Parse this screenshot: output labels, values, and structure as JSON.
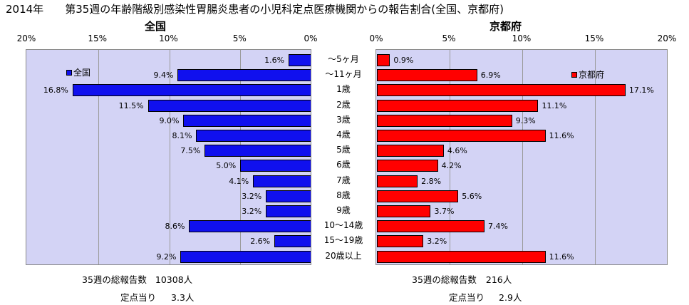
{
  "title": {
    "year": "2014年",
    "text": "第35週の年齢階級別感染性胃腸炎患者の小児科定点医療機関からの報告割合(全国、京都府)"
  },
  "colors": {
    "national": "#1010ee",
    "kyoto": "#ff0000",
    "plot_bg": "#d3d3f5"
  },
  "chart_data": [
    {
      "type": "bar",
      "orientation": "horizontal",
      "direction": "right-to-left",
      "title": "全国",
      "categories": [
        "～5ヶ月",
        "～11ヶ月",
        "1歳",
        "2歳",
        "3歳",
        "4歳",
        "5歳",
        "6歳",
        "7歳",
        "8歳",
        "9歳",
        "10～14歳",
        "15～19歳",
        "20歳以上"
      ],
      "series": [
        {
          "name": "全国",
          "values": [
            1.6,
            9.4,
            16.8,
            11.5,
            9.0,
            8.1,
            7.5,
            5.0,
            4.1,
            3.2,
            3.2,
            8.6,
            2.6,
            9.2
          ],
          "labels": [
            "1.6%",
            "9.4%",
            "16.8%",
            "11.5%",
            "9.0%",
            "8.1%",
            "7.5%",
            "5.0%",
            "4.1%",
            "3.2%",
            "3.2%",
            "8.6%",
            "2.6%",
            "9.2%"
          ]
        }
      ],
      "xlim": [
        0,
        20
      ],
      "ticks": [
        "20%",
        "15%",
        "10%",
        "5%",
        "0%"
      ],
      "grid": true,
      "legend": "top-left",
      "summary": {
        "label1": "35週の総報告数",
        "value1": "10308人",
        "label2": "定点当り",
        "value2": "3.3人"
      }
    },
    {
      "type": "bar",
      "orientation": "horizontal",
      "direction": "left-to-right",
      "title": "京都府",
      "categories": [
        "～5ヶ月",
        "～11ヶ月",
        "1歳",
        "2歳",
        "3歳",
        "4歳",
        "5歳",
        "6歳",
        "7歳",
        "8歳",
        "9歳",
        "10～14歳",
        "15～19歳",
        "20歳以上"
      ],
      "series": [
        {
          "name": "京都府",
          "values": [
            0.9,
            6.9,
            17.1,
            11.1,
            9.3,
            11.6,
            4.6,
            4.2,
            2.8,
            5.6,
            3.7,
            7.4,
            3.2,
            11.6
          ],
          "labels": [
            "0.9%",
            "6.9%",
            "17.1%",
            "11.1%",
            "9.3%",
            "11.6%",
            "4.6%",
            "4.2%",
            "2.8%",
            "5.6%",
            "3.7%",
            "7.4%",
            "3.2%",
            "11.6%"
          ]
        }
      ],
      "xlim": [
        0,
        20
      ],
      "ticks": [
        "0%",
        "5%",
        "10%",
        "15%",
        "20%"
      ],
      "grid": true,
      "legend": "top-right",
      "summary": {
        "label1": "35週の総報告数",
        "value1": "216人",
        "label2": "定点当り",
        "value2": "2.9人"
      }
    }
  ]
}
